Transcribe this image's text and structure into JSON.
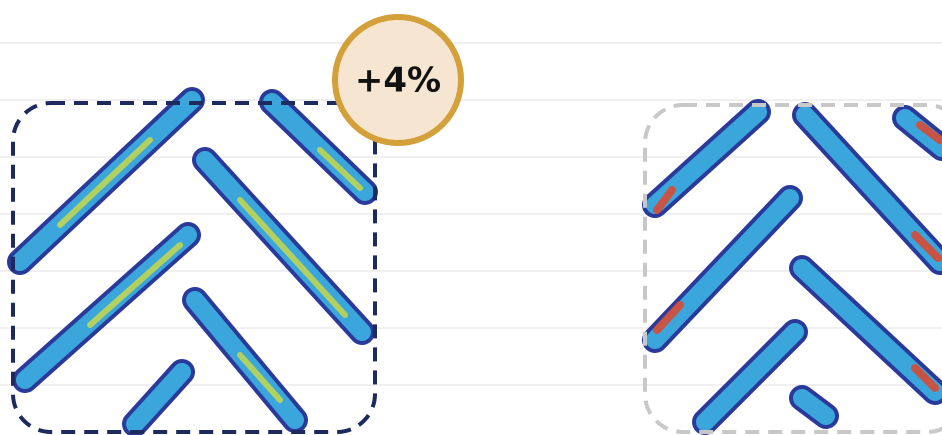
{
  "badge": {
    "label": "+4%"
  }
}
